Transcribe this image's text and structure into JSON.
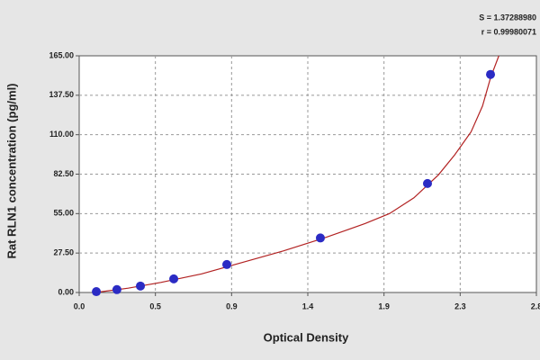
{
  "chart_data": {
    "type": "scatter",
    "x_label": "Optical Density",
    "y_label": "Rat RLN1 concentration (pg/ml)",
    "annotations": [
      "S = 1.37288980",
      "r = 0.99980071"
    ],
    "xlim": [
      0,
      2.8
    ],
    "xticks": [
      {
        "value": 0,
        "label": "0.0"
      },
      {
        "value": 0.4667,
        "label": "0.5"
      },
      {
        "value": 0.9333,
        "label": "0.9"
      },
      {
        "value": 1.4,
        "label": "1.4"
      },
      {
        "value": 1.8667,
        "label": "1.9"
      },
      {
        "value": 2.3333,
        "label": "2.3"
      },
      {
        "value": 2.8,
        "label": "2.8"
      }
    ],
    "ylim": [
      0,
      165
    ],
    "yticks": [
      {
        "value": 0,
        "label": "0.00"
      },
      {
        "value": 27.5,
        "label": "27.50"
      },
      {
        "value": 55,
        "label": "55.00"
      },
      {
        "value": 82.5,
        "label": "82.50"
      },
      {
        "value": 110,
        "label": "110.00"
      },
      {
        "value": 137.5,
        "label": "137.50"
      },
      {
        "value": 165,
        "label": "165.00"
      }
    ],
    "grid": true,
    "series": [
      {
        "type": "line",
        "color": "#b22222",
        "x": [
          0.1,
          0.3,
          0.5,
          0.75,
          1.0,
          1.25,
          1.5,
          1.75,
          1.9,
          2.05,
          2.2,
          2.3,
          2.4,
          2.47,
          2.52,
          2.57
        ],
        "values": [
          0,
          3,
          7,
          13,
          21,
          29,
          38,
          48,
          55,
          66,
          82,
          96,
          112,
          130,
          150,
          165
        ]
      },
      {
        "type": "scatter",
        "color": "#2b2bc4",
        "x": [
          0.105,
          0.231,
          0.375,
          0.579,
          0.904,
          1.477,
          2.133,
          2.519
        ],
        "values": [
          0.6,
          2,
          4.5,
          9.5,
          19.5,
          38,
          76,
          152
        ]
      }
    ]
  }
}
